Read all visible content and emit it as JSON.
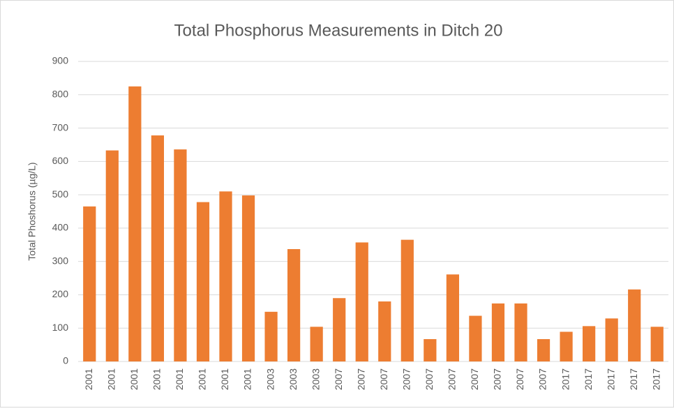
{
  "chart_data": {
    "type": "bar",
    "title": "Total Phosphorus Measurements in Ditch 20",
    "ylabel": "Total Phoshorus (µg/L)",
    "categories": [
      "2001",
      "2001",
      "2001",
      "2001",
      "2001",
      "2001",
      "2001",
      "2001",
      "2003",
      "2003",
      "2003",
      "2007",
      "2007",
      "2007",
      "2007",
      "2007",
      "2007",
      "2007",
      "2007",
      "2007",
      "2007",
      "2017",
      "2017",
      "2017",
      "2017",
      "2017"
    ],
    "values": [
      465,
      633,
      825,
      678,
      636,
      478,
      510,
      498,
      149,
      337,
      104,
      190,
      357,
      180,
      365,
      67,
      261,
      137,
      174,
      174,
      67,
      89,
      106,
      129,
      216,
      104
    ],
    "color": "#ed7d31",
    "ylim": [
      0,
      900
    ],
    "yticks": [
      0,
      100,
      200,
      300,
      400,
      500,
      600,
      700,
      800,
      900
    ],
    "grid": true
  }
}
